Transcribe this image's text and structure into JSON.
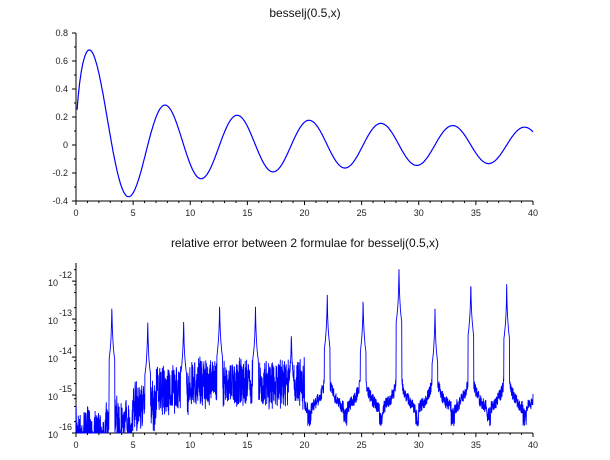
{
  "chart_data": [
    {
      "type": "line",
      "title": "besselj(0.5,x)",
      "xlim": [
        0,
        40
      ],
      "ylim": [
        -0.4,
        0.8
      ],
      "xticks": [
        "0",
        "5",
        "10",
        "15",
        "20",
        "25",
        "30",
        "35",
        "40"
      ],
      "yticks": [
        "-0.4",
        "-0.2",
        "0",
        "0.2",
        "0.4",
        "0.6",
        "0.8"
      ],
      "grid": false,
      "color": "#0000ff",
      "series": [
        {
          "function": "besselj(0.5,x)",
          "x_range": [
            0.1,
            40
          ],
          "samples": 800
        }
      ],
      "extrema": [
        [
          1.17,
          0.68
        ],
        [
          4.6,
          -0.36
        ],
        [
          7.85,
          0.28
        ],
        [
          11.0,
          -0.24
        ],
        [
          14.1,
          0.21
        ],
        [
          17.3,
          -0.19
        ],
        [
          20.4,
          0.18
        ],
        [
          23.6,
          -0.16
        ],
        [
          26.7,
          0.15
        ],
        [
          29.8,
          -0.15
        ],
        [
          33.0,
          0.14
        ],
        [
          36.1,
          -0.13
        ],
        [
          39.3,
          0.13
        ]
      ]
    },
    {
      "type": "line",
      "title": "relative error between 2 formulae for besselj(0.5,x)",
      "yscale": "log",
      "xlim": [
        0,
        40
      ],
      "ylim": [
        1e-16,
        3e-12
      ],
      "xticks": [
        "0",
        "5",
        "10",
        "15",
        "20",
        "25",
        "30",
        "35",
        "40"
      ],
      "yticks": [
        {
          "base": "10",
          "exp": "-16"
        },
        {
          "base": "10",
          "exp": "-15"
        },
        {
          "base": "10",
          "exp": "-14"
        },
        {
          "base": "10",
          "exp": "-13"
        },
        {
          "base": "10",
          "exp": "-12"
        }
      ],
      "grid": false,
      "color": "#0000ff",
      "peaks": [
        [
          3.14,
          2.5e-13
        ],
        [
          6.28,
          1e-13
        ],
        [
          9.42,
          1.1e-13
        ],
        [
          12.57,
          3e-13
        ],
        [
          15.71,
          2.4e-13
        ],
        [
          18.85,
          5e-14
        ],
        [
          21.99,
          5e-13
        ],
        [
          25.13,
          4e-13
        ],
        [
          28.27,
          2.4e-12
        ],
        [
          31.42,
          2e-13
        ],
        [
          34.56,
          1.1e-12
        ],
        [
          37.7,
          9e-13
        ]
      ],
      "noise_levels": [
        [
          0,
          3e-16
        ],
        [
          2.5,
          6e-16
        ],
        [
          5,
          1.5e-15
        ],
        [
          7,
          4e-15
        ],
        [
          10,
          6e-15
        ],
        [
          20,
          1e-14
        ]
      ]
    }
  ]
}
